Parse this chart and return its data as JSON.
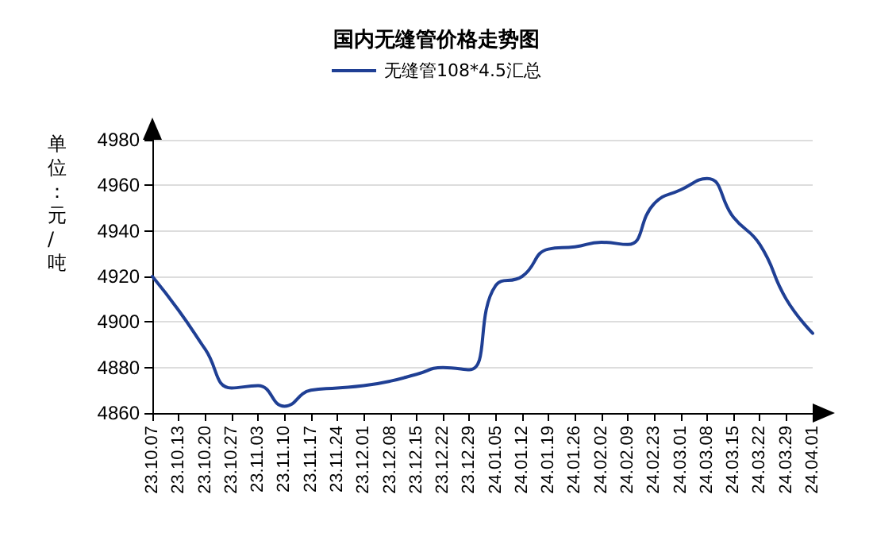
{
  "chart_data": {
    "type": "line",
    "title": "国内无缝管价格走势图",
    "ylabel": "单位：元/吨",
    "categories": [
      "23.10.07",
      "23.10.13",
      "23.10.20",
      "23.10.27",
      "23.11.03",
      "23.11.10",
      "23.11.17",
      "23.11.24",
      "23.12.01",
      "23.12.08",
      "23.12.15",
      "23.12.22",
      "23.12.29",
      "24.01.05",
      "24.01.12",
      "24.01.19",
      "24.01.26",
      "24.02.02",
      "24.02.09",
      "24.02.23",
      "24.03.01",
      "24.03.08",
      "24.03.15",
      "24.03.22",
      "24.03.29",
      "24.04.01"
    ],
    "series": [
      {
        "name": "无缝管108*4.5汇总",
        "color": "#1f3f94",
        "values": [
          4920,
          4905,
          4888,
          4871,
          4872,
          4863,
          4870,
          4871,
          4872,
          4874,
          4877,
          4880,
          4879,
          4916,
          4920,
          4932,
          4933,
          4935,
          4934,
          4952,
          4958,
          4963,
          4946,
          4934,
          4910,
          4895
        ]
      }
    ],
    "ylim": [
      4860,
      4980
    ],
    "yticks": [
      4860,
      4880,
      4900,
      4920,
      4940,
      4960,
      4980
    ],
    "grid": "y",
    "legend": "top",
    "marker": "none",
    "line_style": "solid"
  }
}
